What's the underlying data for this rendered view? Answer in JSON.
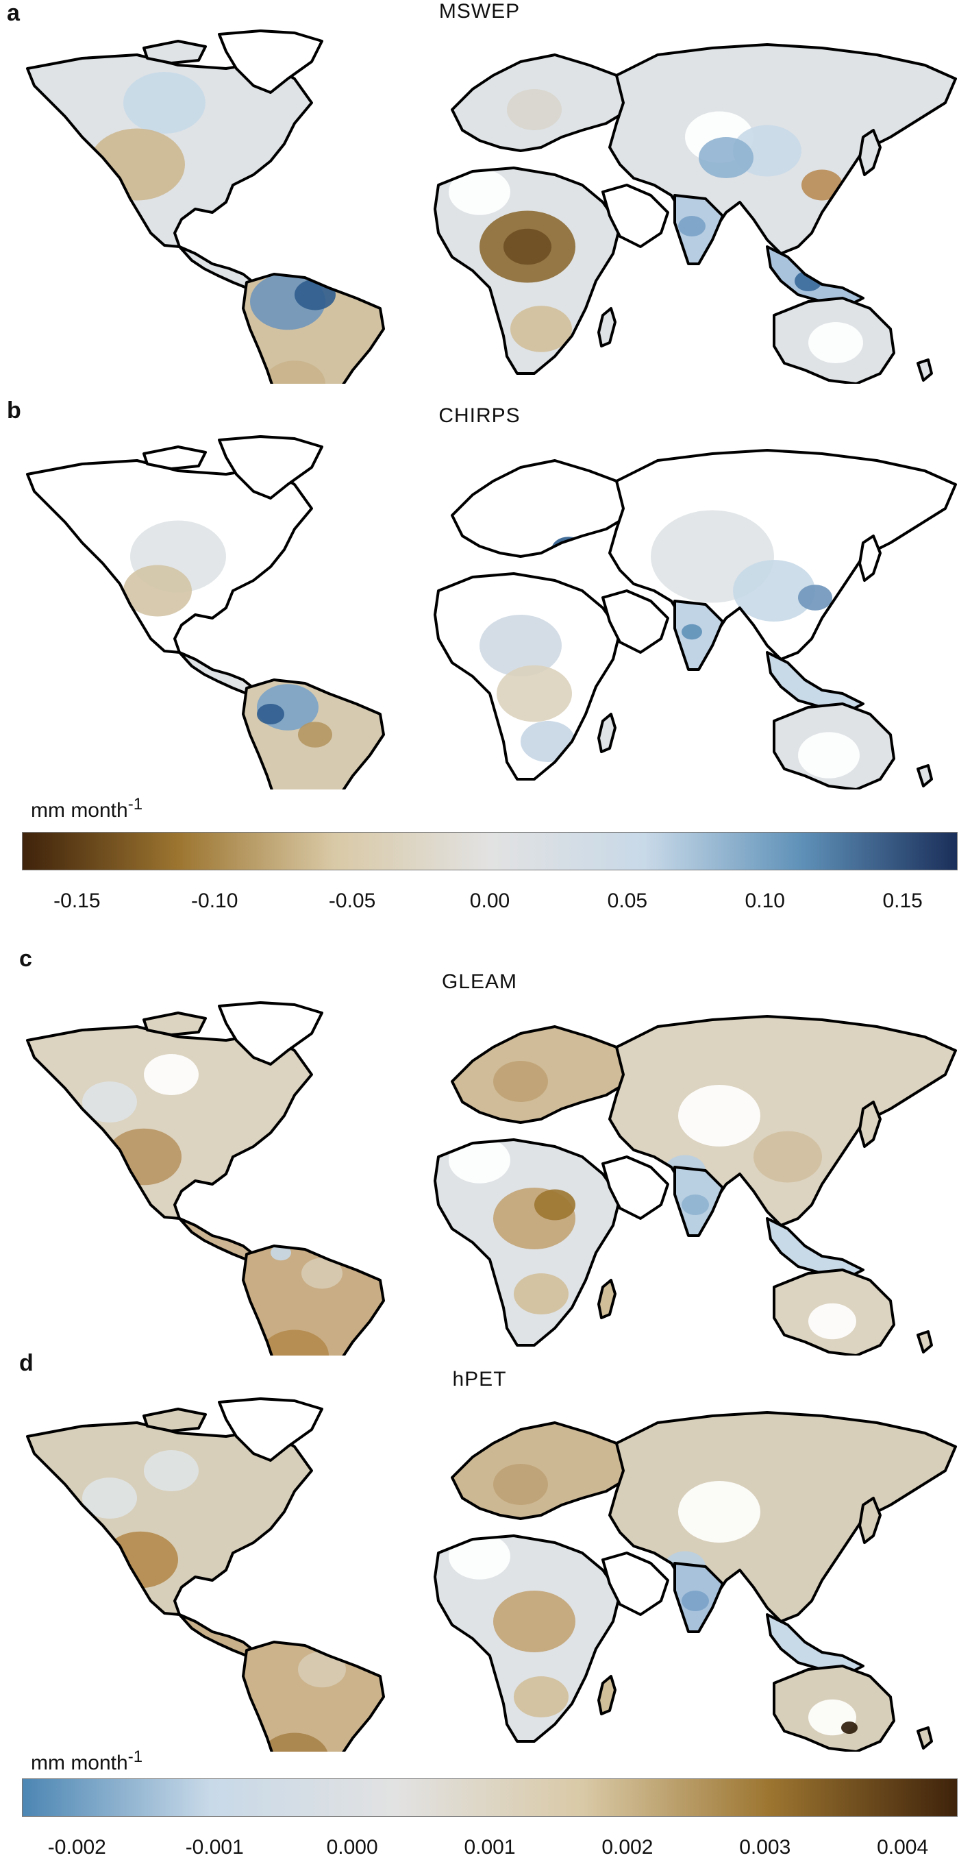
{
  "panels": [
    {
      "letter": "a",
      "title": "MSWEP"
    },
    {
      "letter": "b",
      "title": "CHIRPS"
    },
    {
      "letter": "c",
      "title": "GLEAM"
    },
    {
      "letter": "d",
      "title": "hPET"
    }
  ],
  "legend_top": {
    "unit_main": "mm  month",
    "unit_exp": "-1",
    "ticks": [
      "-0.15",
      "-0.10",
      "-0.05",
      "0.00",
      "0.05",
      "0.10",
      "0.15"
    ],
    "range": [
      -0.17,
      0.17
    ],
    "colors": [
      "#3f230b",
      "#9c7530",
      "#d9c9a6",
      "#e2e2e2",
      "#c8d9e8",
      "#5f91b8",
      "#1a2f5a"
    ]
  },
  "legend_bottom": {
    "unit_main": "mm  month",
    "unit_exp": "-1",
    "ticks": [
      "-0.002",
      "-0.001",
      "0.000",
      "0.001",
      "0.002",
      "0.003",
      "0.004"
    ],
    "range": [
      -0.0024,
      0.0044
    ],
    "colors": [
      "#4c86b3",
      "#c8d9e8",
      "#e2e2e2",
      "#d9c9a6",
      "#9c7530",
      "#3f230b"
    ]
  },
  "palette": {
    "ocean": "#ffffff",
    "land_neutral": "#dfe3e6",
    "land_dry": "#d8c8a8",
    "land_brown": "#b48a4c",
    "land_blue": "#b9cfe2",
    "land_dark_blue": "#2f5d8e",
    "desert_blank": "#ffffff",
    "coast": "#000000"
  }
}
